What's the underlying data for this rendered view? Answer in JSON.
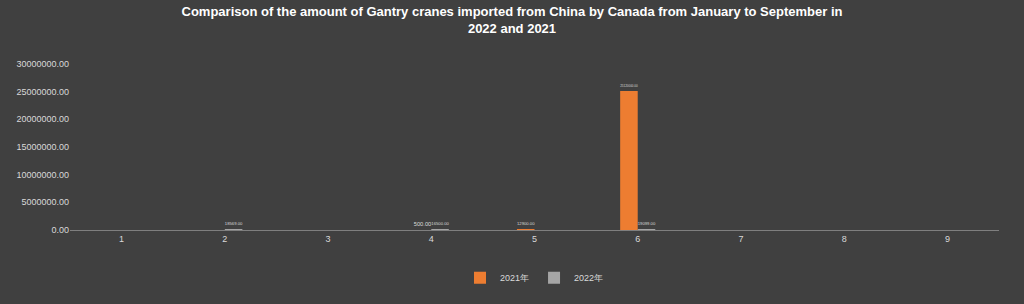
{
  "chart_data": {
    "type": "bar",
    "title": "Comparison of the amount of Gantry cranes imported from China by Canada from January to September in 2022 and 2021",
    "categories": [
      "1",
      "2",
      "3",
      "4",
      "5",
      "6",
      "7",
      "8",
      "9"
    ],
    "series": [
      {
        "name": "2021年",
        "color": "#ed7d31",
        "values": [
          null,
          null,
          null,
          500,
          12900,
          25120000,
          null,
          null,
          null
        ],
        "value_labels": [
          null,
          null,
          null,
          "500.00",
          "12900.00",
          "25120000.00",
          null,
          null,
          null
        ]
      },
      {
        "name": "2022年",
        "color": "#a5a5a5",
        "values": [
          null,
          18569,
          null,
          16500,
          null,
          19099,
          null,
          null,
          null
        ],
        "value_labels": [
          null,
          "18569.00",
          null,
          "16500.00",
          null,
          "19099.00",
          null,
          null,
          null
        ]
      }
    ],
    "ylim": [
      0,
      30000000
    ],
    "yticks": [
      {
        "value": 0,
        "label": "0.00"
      },
      {
        "value": 5000000,
        "label": "5000000.00"
      },
      {
        "value": 10000000,
        "label": "10000000.00"
      },
      {
        "value": 15000000,
        "label": "15000000.00"
      },
      {
        "value": 20000000,
        "label": "20000000.00"
      },
      {
        "value": 25000000,
        "label": "25000000.00"
      },
      {
        "value": 30000000,
        "label": "30000000.00"
      }
    ],
    "grid": false,
    "legend": "bottom",
    "data_labels": true
  }
}
